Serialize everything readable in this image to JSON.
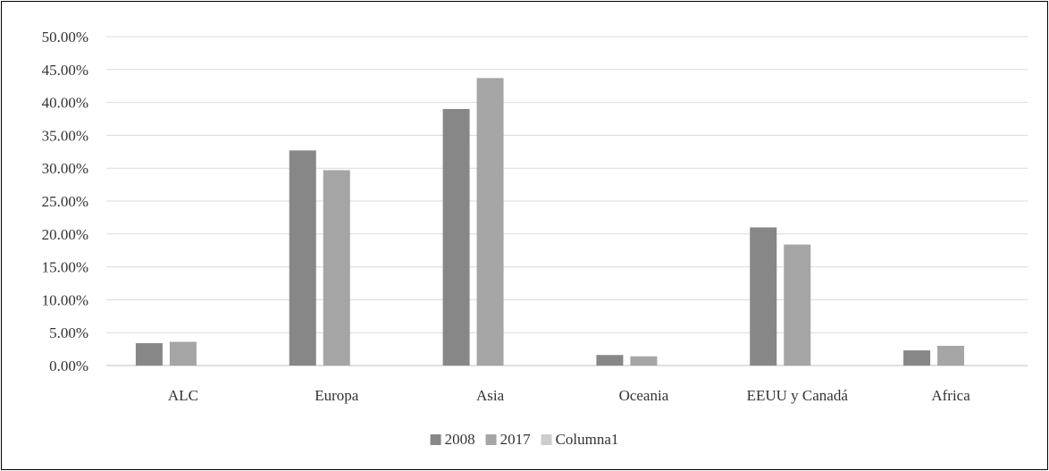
{
  "chart_data": {
    "type": "bar",
    "categories": [
      "ALC",
      "Europa",
      "Asia",
      "Oceania",
      "EEUU y Canadá",
      "Africa"
    ],
    "series": [
      {
        "name": "2008",
        "color": "#878787",
        "values": [
          3.4,
          32.7,
          39.0,
          1.6,
          21.0,
          2.3
        ]
      },
      {
        "name": "2017",
        "color": "#a5a5a5",
        "values": [
          3.6,
          29.7,
          43.7,
          1.4,
          18.4,
          3.0
        ]
      },
      {
        "name": "Columna1",
        "color": "#cccccc",
        "values": [
          0,
          0,
          0,
          0,
          0,
          0
        ]
      }
    ],
    "ylim": [
      0,
      50
    ],
    "yticks": [
      0,
      5,
      10,
      15,
      20,
      25,
      30,
      35,
      40,
      45,
      50
    ],
    "ytick_format": "0.00%",
    "grid": true,
    "legend_position": "bottom",
    "title": "",
    "xlabel": "",
    "ylabel": ""
  }
}
